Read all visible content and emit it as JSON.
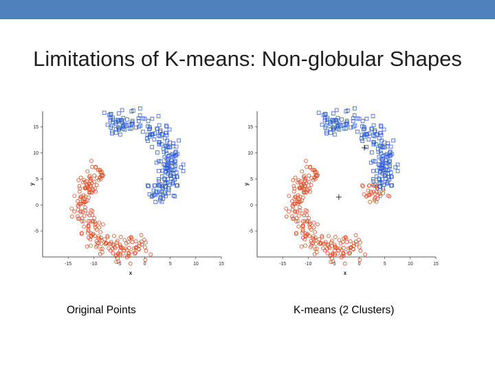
{
  "slide": {
    "title": "Limitations of K-means: Non-globular Shapes",
    "colors": {
      "top_bar": "#4f81bd",
      "blue_cluster": "#2f5fd0",
      "red_cluster": "#e0502a",
      "centroid_marker": "#000000"
    }
  },
  "chart_data": [
    {
      "type": "scatter",
      "caption": "Original Points",
      "xlabel": "x",
      "ylabel": "y",
      "xlim": [
        -20,
        15
      ],
      "ylim": [
        -10,
        18
      ],
      "xticks": [
        "-15",
        "-10",
        "-5",
        "0",
        "5",
        "10",
        "15"
      ],
      "yticks": [
        "15",
        "10",
        "5",
        "0",
        "-5"
      ],
      "grid": false,
      "shape": "two interleaved crescents",
      "series": [
        {
          "marker": "square",
          "color": "#2f5fd0",
          "crescent": "upper-right"
        },
        {
          "marker": "circle",
          "color": "#e0502a",
          "crescent": "lower-left"
        }
      ]
    },
    {
      "type": "scatter",
      "caption": "K-means (2 Clusters)",
      "xlabel": "x",
      "ylabel": "y",
      "xlim": [
        -20,
        15
      ],
      "ylim": [
        -10,
        18
      ],
      "xticks": [
        "-15",
        "-10",
        "-5",
        "0",
        "5",
        "10",
        "15"
      ],
      "yticks": [
        "15",
        "10",
        "5",
        "0",
        "-5"
      ],
      "grid": false,
      "shape": "two interleaved crescents split by k-means",
      "series": [
        {
          "marker": "square",
          "color": "#2f5fd0",
          "region": "upper"
        },
        {
          "marker": "circle",
          "color": "#e0502a",
          "region": "lower"
        }
      ],
      "centroids": [
        [
          -4,
          1.5
        ],
        [
          1,
          11
        ]
      ]
    }
  ]
}
